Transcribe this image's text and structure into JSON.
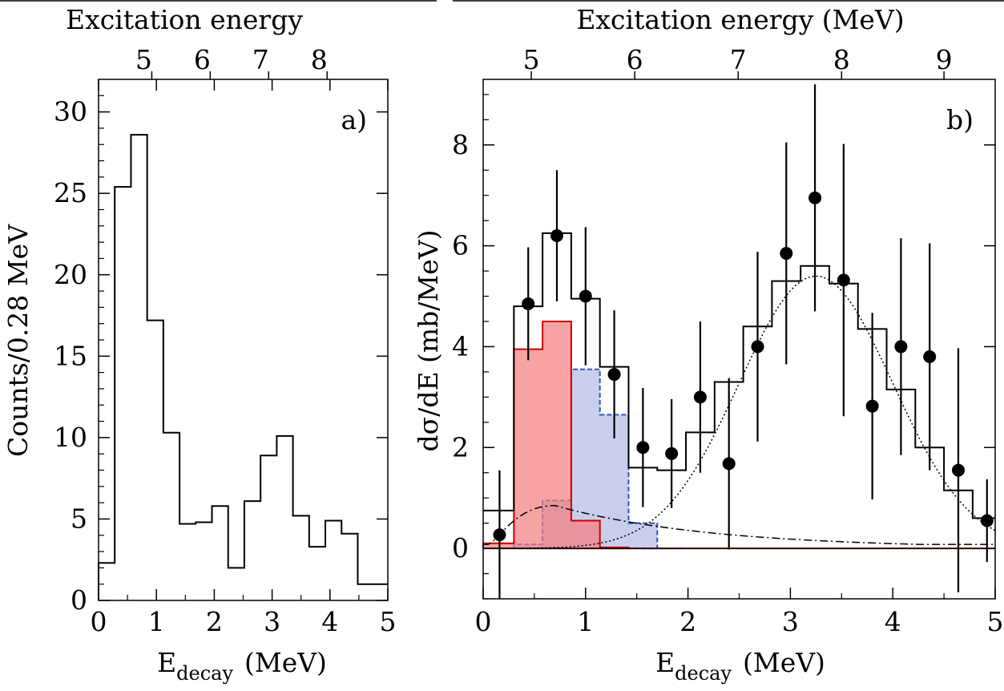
{
  "chart_data": [
    {
      "type": "histogram",
      "panel_label": "a)",
      "top_axis_title": "Excitation energy",
      "top_ticks": [
        {
          "label": "5",
          "x": 0.92
        },
        {
          "label": "6",
          "x": 1.93
        },
        {
          "label": "7",
          "x": 2.94
        },
        {
          "label": "8",
          "x": 3.95
        }
      ],
      "xlabel_main": "E",
      "xlabel_sub": "decay",
      "xlabel_unit": "(MeV)",
      "ylabel": "Counts/0.28 MeV",
      "xlim": [
        0,
        5
      ],
      "ylim": [
        0,
        32
      ],
      "xticks": [
        0,
        1,
        2,
        3,
        4,
        5
      ],
      "yticks": [
        0,
        5,
        10,
        15,
        20,
        25,
        30
      ],
      "bin_edges": [
        0,
        0.28,
        0.56,
        0.84,
        1.12,
        1.4,
        1.68,
        1.96,
        2.24,
        2.52,
        2.8,
        3.08,
        3.36,
        3.64,
        3.92,
        4.2,
        4.48,
        5.0
      ],
      "counts": [
        2.3,
        25.4,
        28.6,
        17.2,
        10.3,
        4.7,
        4.8,
        5.8,
        2.0,
        6.1,
        8.9,
        10.1,
        5.2,
        3.3,
        4.9,
        4.1,
        1.0
      ]
    },
    {
      "type": "histogram_with_errorbars",
      "panel_label": "b)",
      "top_axis_title": "Excitation energy  (MeV)",
      "top_ticks": [
        {
          "label": "5",
          "x": 0.47
        },
        {
          "label": "6",
          "x": 1.48
        },
        {
          "label": "7",
          "x": 2.49
        },
        {
          "label": "8",
          "x": 3.5
        },
        {
          "label": "9",
          "x": 4.5
        }
      ],
      "xlabel_main": "E",
      "xlabel_sub": "decay",
      "xlabel_unit": "(MeV)",
      "ylabel": "dσ/dE  (mb/MeV)",
      "xlim": [
        0,
        5
      ],
      "ylim": [
        -1,
        9.3
      ],
      "xticks": [
        0,
        1,
        2,
        3,
        4,
        5
      ],
      "yticks": [
        0,
        2,
        4,
        6,
        8
      ],
      "points": {
        "x": [
          0.16,
          0.44,
          0.72,
          1.0,
          1.28,
          1.56,
          1.84,
          2.12,
          2.4,
          2.68,
          2.96,
          3.24,
          3.52,
          3.8,
          4.08,
          4.36,
          4.64,
          4.92
        ],
        "y": [
          0.27,
          4.85,
          6.2,
          5.0,
          3.45,
          2.0,
          1.88,
          3.0,
          1.68,
          4.0,
          5.85,
          6.95,
          5.32,
          2.82,
          4.0,
          3.8,
          1.55,
          0.55
        ],
        "yerr": [
          1.28,
          1.12,
          1.3,
          1.37,
          1.27,
          1.18,
          1.08,
          1.5,
          1.7,
          1.88,
          2.2,
          2.25,
          2.7,
          1.85,
          2.15,
          2.25,
          2.42,
          0.82
        ]
      },
      "total_fit": {
        "bin_edges": [
          0,
          0.3,
          0.58,
          0.86,
          1.14,
          1.42,
          1.7,
          1.98,
          2.26,
          2.54,
          2.82,
          3.1,
          3.38,
          3.66,
          3.94,
          4.22,
          4.5,
          4.78,
          5.0
        ],
        "values": [
          0.75,
          4.8,
          6.25,
          4.95,
          3.6,
          1.6,
          1.55,
          2.3,
          3.3,
          4.4,
          5.3,
          5.6,
          5.25,
          4.35,
          3.15,
          2.0,
          1.15,
          0.6
        ]
      },
      "red_component": {
        "color": "#f47c7c",
        "bin_edges": [
          0,
          0.3,
          0.58,
          0.86,
          1.14,
          1.42,
          5.0
        ],
        "values": [
          0.1,
          3.95,
          4.5,
          0.55,
          0.02,
          0
        ]
      },
      "blue_component": {
        "color": "#b5bde6",
        "bin_edges": [
          0.3,
          0.58,
          0.86,
          1.14,
          1.42,
          1.7,
          1.98
        ],
        "values": [
          0.08,
          0.95,
          3.55,
          2.65,
          0.5,
          0.0
        ]
      },
      "dashdot_curve": "broad background peaking near 0.8 at x≈0.7",
      "dotted_curve": "gaussian peaking near 5.4 at x≈3.25"
    }
  ]
}
